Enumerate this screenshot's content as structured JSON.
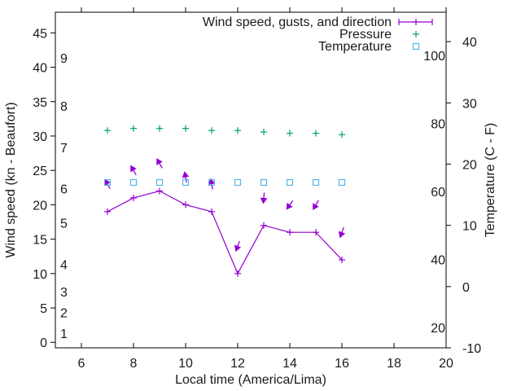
{
  "chart_data": {
    "type": "line",
    "title": "",
    "xlabel": "Local time (America/Lima)",
    "ylabel": "Wind speed (kn - Beaufort)",
    "y2label": "Temperature (C - F)",
    "xlim": [
      5,
      20
    ],
    "ylim": [
      -0.8,
      48
    ],
    "y2lim": [
      -10,
      44.8
    ],
    "grid": false,
    "legend_position": "top-right",
    "x_ticks": [
      6,
      8,
      10,
      12,
      14,
      16,
      18,
      20
    ],
    "y_ticks": [
      0,
      5,
      10,
      15,
      20,
      25,
      30,
      35,
      40,
      45
    ],
    "y2_ticks": [
      -10,
      0,
      10,
      20,
      30,
      40
    ],
    "beaufort_labels": [
      {
        "label": "1",
        "knots": 1
      },
      {
        "label": "2",
        "knots": 4
      },
      {
        "label": "3",
        "knots": 7
      },
      {
        "label": "4",
        "knots": 11
      },
      {
        "label": "5",
        "knots": 17
      },
      {
        "label": "6",
        "knots": 22
      },
      {
        "label": "7",
        "knots": 28
      },
      {
        "label": "8",
        "knots": 34
      },
      {
        "label": "9",
        "knots": 41
      }
    ],
    "fahrenheit_labels": [
      {
        "label": "20",
        "fahrenheit": 20
      },
      {
        "label": "40",
        "fahrenheit": 40
      },
      {
        "label": "60",
        "fahrenheit": 60
      },
      {
        "label": "80",
        "fahrenheit": 80
      },
      {
        "label": "100",
        "fahrenheit": 100
      }
    ],
    "x": [
      7,
      8,
      9,
      10,
      11,
      12,
      13,
      14,
      15,
      16
    ],
    "series": [
      {
        "name": "Wind speed, gusts, and direction",
        "color": "#9400d3",
        "marker": "plus",
        "axis": "y",
        "values": [
          19,
          21,
          22,
          20,
          19,
          10,
          17,
          16,
          16,
          12
        ],
        "gusts": [
          23,
          25,
          26,
          24,
          23,
          14,
          21,
          20,
          20,
          16
        ],
        "direction_deg": [
          150,
          150,
          150,
          170,
          170,
          20,
          5,
          35,
          30,
          20
        ]
      },
      {
        "name": "Pressure",
        "color": "#009e73",
        "marker": "plus",
        "axis": "y",
        "values": [
          30.8,
          31.1,
          31.1,
          31.1,
          30.8,
          30.8,
          30.6,
          30.4,
          30.4,
          30.2
        ]
      },
      {
        "name": "Temperature",
        "color": "#56b4e9",
        "marker": "square",
        "axis": "y2",
        "values": [
          17,
          17,
          17,
          17,
          17,
          17,
          17,
          17,
          17,
          17
        ]
      }
    ]
  }
}
